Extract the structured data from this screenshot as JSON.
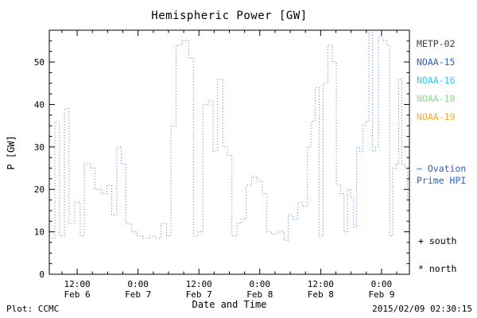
{
  "title": "Hemispheric Power [GW]",
  "axes": {
    "ylabel": "P [GW]",
    "xlabel": "Date and Time"
  },
  "footer": {
    "left": "Plot: CCMC",
    "right": "2015/02/09 02:30:15"
  },
  "legend": {
    "satellites": [
      {
        "label": "METP-02",
        "color": "#3c3c3c"
      },
      {
        "label": "NOAA-15",
        "color": "#3060c8"
      },
      {
        "label": "NOAA-16",
        "color": "#38c8e8"
      },
      {
        "label": "NOAA-18",
        "color": "#8cdc8c"
      },
      {
        "label": "NOAA-19",
        "color": "#f8a838"
      }
    ],
    "model": {
      "line1": "— Ovation",
      "line2": "Prime HPI",
      "color": "#3060c8"
    },
    "markers": {
      "south": "+ south",
      "north": "* north"
    }
  },
  "chart_data": {
    "type": "line",
    "style": "dotted-step",
    "color": "#4d79c7",
    "x_unit": "hours from 2015 Feb 6 ~06:30",
    "xlim": [
      0,
      71
    ],
    "ylim": [
      0,
      57.5
    ],
    "yticks": [
      0,
      10,
      20,
      30,
      40,
      50
    ],
    "y_minor_step": 2.5,
    "x_minor_step": 3,
    "xticks": [
      {
        "t": 5.5,
        "time": "12:00",
        "date": "Feb 6"
      },
      {
        "t": 17.5,
        "time": "0:00",
        "date": "Feb 7"
      },
      {
        "t": 29.5,
        "time": "12:00",
        "date": "Feb 7"
      },
      {
        "t": 41.5,
        "time": "0:00",
        "date": "Feb 8"
      },
      {
        "t": 53.5,
        "time": "12:00",
        "date": "Feb 8"
      },
      {
        "t": 65.5,
        "time": "0:00",
        "date": "Feb 9"
      }
    ],
    "points": [
      [
        0,
        8.5
      ],
      [
        1.1,
        36
      ],
      [
        2,
        9
      ],
      [
        3,
        39
      ],
      [
        3.9,
        12
      ],
      [
        5,
        17
      ],
      [
        6.1,
        9
      ],
      [
        6.9,
        26
      ],
      [
        8.1,
        25
      ],
      [
        9,
        20
      ],
      [
        10.3,
        19
      ],
      [
        11.4,
        21
      ],
      [
        12.3,
        14
      ],
      [
        13.3,
        30
      ],
      [
        14.2,
        26
      ],
      [
        15.1,
        12
      ],
      [
        16.2,
        10
      ],
      [
        17.3,
        9
      ],
      [
        18.4,
        8.5
      ],
      [
        19.7,
        9
      ],
      [
        20.9,
        8.5
      ],
      [
        22,
        12
      ],
      [
        23.1,
        9
      ],
      [
        24,
        35
      ],
      [
        25,
        54
      ],
      [
        26.2,
        55
      ],
      [
        27.5,
        51
      ],
      [
        28.4,
        9
      ],
      [
        29.3,
        10
      ],
      [
        30.3,
        40
      ],
      [
        31.4,
        41
      ],
      [
        32.3,
        29
      ],
      [
        33.2,
        46
      ],
      [
        34.2,
        30
      ],
      [
        35.1,
        28
      ],
      [
        36,
        9
      ],
      [
        37,
        12
      ],
      [
        37.9,
        13
      ],
      [
        38.8,
        21
      ],
      [
        39.9,
        23
      ],
      [
        41,
        22
      ],
      [
        42,
        19
      ],
      [
        42.9,
        10
      ],
      [
        43.8,
        9.5
      ],
      [
        45.1,
        10
      ],
      [
        46.3,
        8
      ],
      [
        47.1,
        14
      ],
      [
        48,
        13
      ],
      [
        49,
        17
      ],
      [
        49.9,
        16
      ],
      [
        50.9,
        30
      ],
      [
        51.6,
        36
      ],
      [
        52.4,
        44
      ],
      [
        53.2,
        9
      ],
      [
        54,
        45
      ],
      [
        54.9,
        54
      ],
      [
        55.8,
        50
      ],
      [
        56.6,
        21
      ],
      [
        57.4,
        19
      ],
      [
        58.1,
        10
      ],
      [
        58.8,
        20
      ],
      [
        59.4,
        18
      ],
      [
        60,
        11
      ],
      [
        60.6,
        30
      ],
      [
        61.2,
        29
      ],
      [
        61.8,
        35
      ],
      [
        62.4,
        36
      ],
      [
        63,
        57
      ],
      [
        63.7,
        29
      ],
      [
        64.3,
        30
      ],
      [
        64.9,
        56
      ],
      [
        65.7,
        55
      ],
      [
        66.5,
        54
      ],
      [
        67.1,
        9
      ],
      [
        67.7,
        25
      ],
      [
        68.3,
        26
      ],
      [
        68.9,
        46
      ],
      [
        69.5,
        26
      ],
      [
        70.1,
        25
      ],
      [
        70.6,
        18
      ]
    ]
  }
}
